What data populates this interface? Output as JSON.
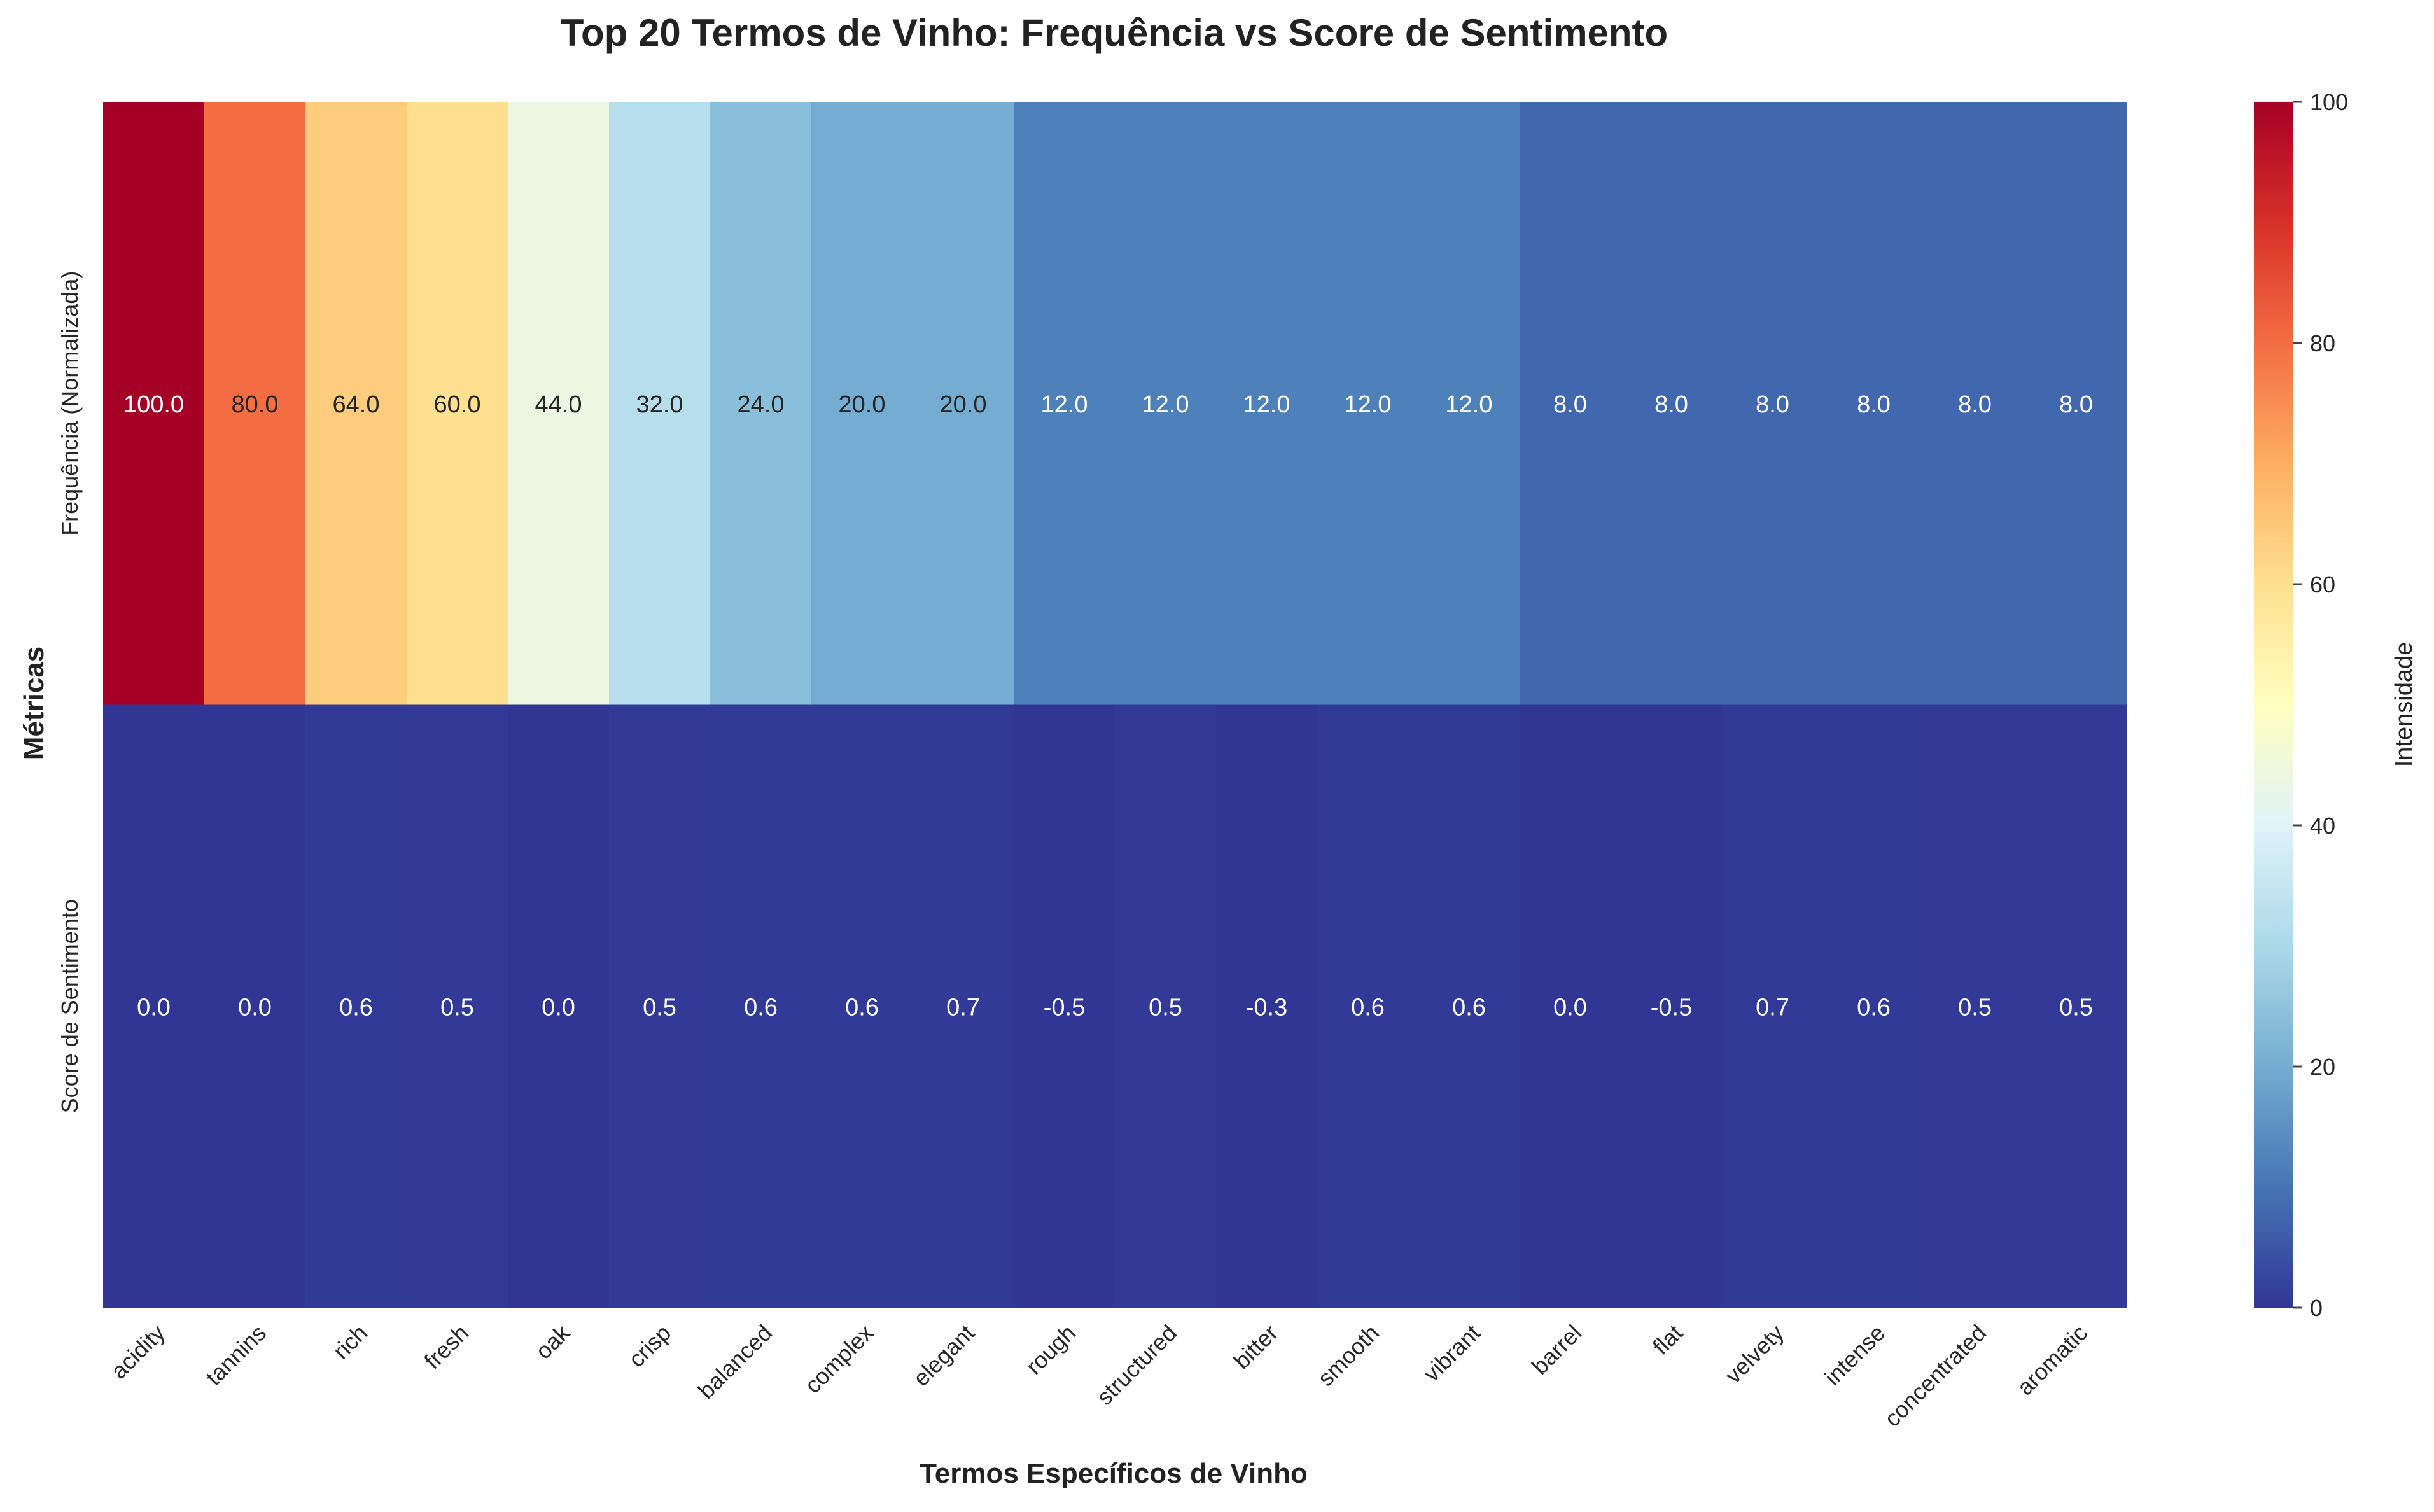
{
  "chart_data": {
    "type": "heatmap",
    "title": "Top 20 Termos de Vinho: Frequência vs Score de Sentimento",
    "xlabel": "Termos Específicos de Vinho",
    "ylabel": "Métricas",
    "x_categories": [
      "acidity",
      "tannins",
      "rich",
      "fresh",
      "oak",
      "crisp",
      "balanced",
      "complex",
      "elegant",
      "rough",
      "structured",
      "bitter",
      "smooth",
      "vibrant",
      "barrel",
      "flat",
      "velvety",
      "intense",
      "concentrated",
      "aromatic"
    ],
    "y_categories": [
      "Frequência (Normalizada)",
      "Score de Sentimento"
    ],
    "values": [
      [
        100.0,
        80.0,
        64.0,
        60.0,
        44.0,
        32.0,
        24.0,
        20.0,
        20.0,
        12.0,
        12.0,
        12.0,
        12.0,
        12.0,
        8.0,
        8.0,
        8.0,
        8.0,
        8.0,
        8.0
      ],
      [
        0.0,
        0.0,
        0.6,
        0.5,
        0.0,
        0.5,
        0.6,
        0.6,
        0.7,
        -0.5,
        0.5,
        -0.3,
        0.6,
        0.6,
        0.0,
        -0.5,
        0.7,
        0.6,
        0.5,
        0.5
      ]
    ],
    "value_labels": [
      [
        "100.0",
        "80.0",
        "64.0",
        "60.0",
        "44.0",
        "32.0",
        "24.0",
        "20.0",
        "20.0",
        "12.0",
        "12.0",
        "12.0",
        "12.0",
        "12.0",
        "8.0",
        "8.0",
        "8.0",
        "8.0",
        "8.0",
        "8.0"
      ],
      [
        "0.0",
        "0.0",
        "0.6",
        "0.5",
        "0.0",
        "0.5",
        "0.6",
        "0.6",
        "0.7",
        "-0.5",
        "0.5",
        "-0.3",
        "0.6",
        "0.6",
        "0.0",
        "-0.5",
        "0.7",
        "0.6",
        "0.5",
        "0.5"
      ]
    ],
    "colormap": "RdYlBu_r",
    "color_range": [
      0,
      100
    ],
    "colorbar": {
      "label": "Intensidade",
      "ticks": [
        0,
        20,
        40,
        60,
        80,
        100
      ],
      "tick_labels": [
        "0",
        "20",
        "40",
        "60",
        "80",
        "100"
      ]
    },
    "grid": false,
    "legend": "none"
  }
}
